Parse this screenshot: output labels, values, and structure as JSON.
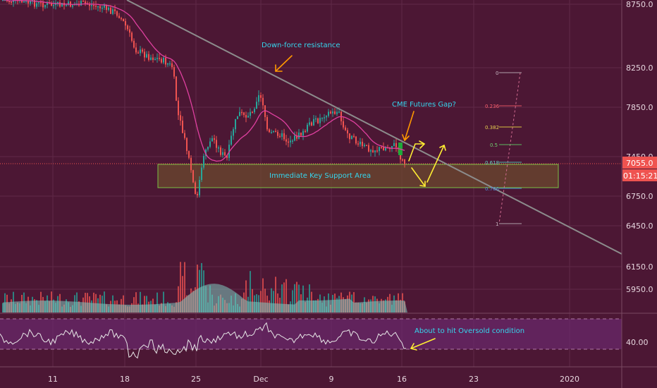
{
  "chart_data": {
    "type": "candlestick",
    "price_axis": {
      "ticks": [
        "8750.0",
        "8250.0",
        "7850.0",
        "7450.0",
        "7055.0",
        "6750.0",
        "6450.0",
        "6150.0",
        "5950.0"
      ],
      "current_price": "7055.0",
      "countdown": "01:15:21"
    },
    "x_axis": {
      "ticks": [
        "11",
        "18",
        "25",
        "Dec",
        "9",
        "16",
        "23",
        "2020"
      ]
    },
    "rsi_axis": {
      "ticks": [
        "40.00"
      ]
    },
    "annotations": {
      "resistance": "Down-force resistance",
      "gap": "CME Futures Gap?",
      "support": "Immediate Key Support Area",
      "rsi": "About to hit Oversold condition"
    },
    "fib_levels": [
      "0",
      "0.236",
      "0.382",
      "0.5",
      "0.618",
      "0.786",
      "1"
    ],
    "colors": {
      "background": "#4c1734",
      "up": "#26a69a",
      "down": "#ef5350",
      "ma": "#e040a0",
      "trendline": "#8c8c8c",
      "annotation_text": "#35d6ee",
      "support_zone": "#7bc144",
      "arrow_orange": "#ff9800",
      "arrow_yellow": "#ffee33"
    }
  }
}
